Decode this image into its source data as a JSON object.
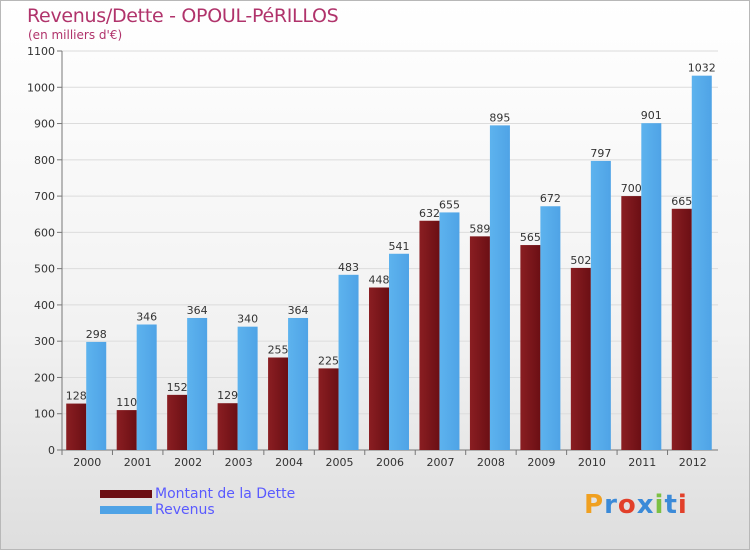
{
  "title": "Revenus/Dette - OPOUL-PéRILLOS",
  "subtitle": "(en milliers d'€)",
  "logo": [
    "P",
    "r",
    "o",
    "x",
    "i",
    "t",
    "i"
  ],
  "colors": {
    "dette": "#6b0f14",
    "revenus": "#4fa3e6",
    "logo": [
      "#f0a020",
      "#3b8ad8",
      "#e2402a",
      "#3b8ad8",
      "#7cc043",
      "#3b8ad8",
      "#e2402a"
    ]
  },
  "legend": {
    "dette": "Montant de la Dette",
    "revenus": "Revenus"
  },
  "chart_data": {
    "type": "bar",
    "title": "Revenus/Dette - OPOUL-PéRILLOS",
    "ylabel": "(en milliers d'€)",
    "ylim": [
      0,
      1100
    ],
    "yticks": [
      0,
      100,
      200,
      300,
      400,
      500,
      600,
      700,
      800,
      900,
      1000,
      1100
    ],
    "grid": true,
    "categories": [
      "2000",
      "2001",
      "2002",
      "2003",
      "2004",
      "2005",
      "2006",
      "2007",
      "2008",
      "2009",
      "2010",
      "2011",
      "2012"
    ],
    "series": [
      {
        "name": "Montant de la Dette",
        "key": "dette",
        "values": [
          128,
          110,
          152,
          129,
          255,
          225,
          448,
          632,
          589,
          565,
          502,
          700,
          665
        ]
      },
      {
        "name": "Revenus",
        "key": "revenus",
        "values": [
          298,
          346,
          364,
          340,
          364,
          483,
          541,
          655,
          895,
          672,
          797,
          901,
          1032
        ]
      }
    ]
  }
}
